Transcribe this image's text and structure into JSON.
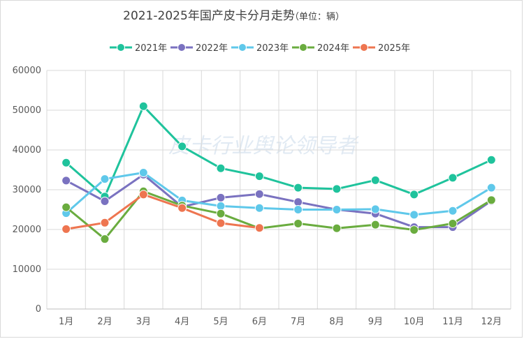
{
  "chart_data": {
    "type": "line",
    "title": "2021-2025年国产皮卡分月走势",
    "title_unit": "（单位：辆）",
    "watermark": "皮卡行业舆论领导者",
    "categories": [
      "1月",
      "2月",
      "3月",
      "4月",
      "5月",
      "6月",
      "7月",
      "8月",
      "9月",
      "10月",
      "11月",
      "12月"
    ],
    "ylim": [
      0,
      60000
    ],
    "yticks": [
      0,
      10000,
      20000,
      30000,
      40000,
      50000,
      60000
    ],
    "grid": true,
    "legend_position": "top",
    "series": [
      {
        "name": "2021年",
        "color": "#1fc39c",
        "values": [
          36800,
          28300,
          51000,
          40900,
          35400,
          33400,
          30500,
          30200,
          32400,
          28800,
          33000,
          37500
        ]
      },
      {
        "name": "2022年",
        "color": "#7a72c0",
        "values": [
          32300,
          27100,
          33800,
          25700,
          28000,
          28900,
          26900,
          25000,
          24000,
          20600,
          20600,
          27200
        ]
      },
      {
        "name": "2023年",
        "color": "#5fc8ea",
        "values": [
          24100,
          32700,
          34300,
          27300,
          25900,
          25400,
          25000,
          25000,
          25100,
          23700,
          24700,
          30500
        ]
      },
      {
        "name": "2024年",
        "color": "#6aac3f",
        "values": [
          25600,
          17600,
          29600,
          26000,
          24000,
          20300,
          21500,
          20300,
          21200,
          19900,
          21500,
          27400
        ]
      },
      {
        "name": "2025年",
        "color": "#ee7550",
        "values": [
          20100,
          21700,
          28800,
          25400,
          21600,
          20400,
          null,
          null,
          null,
          null,
          null,
          null
        ]
      }
    ]
  }
}
